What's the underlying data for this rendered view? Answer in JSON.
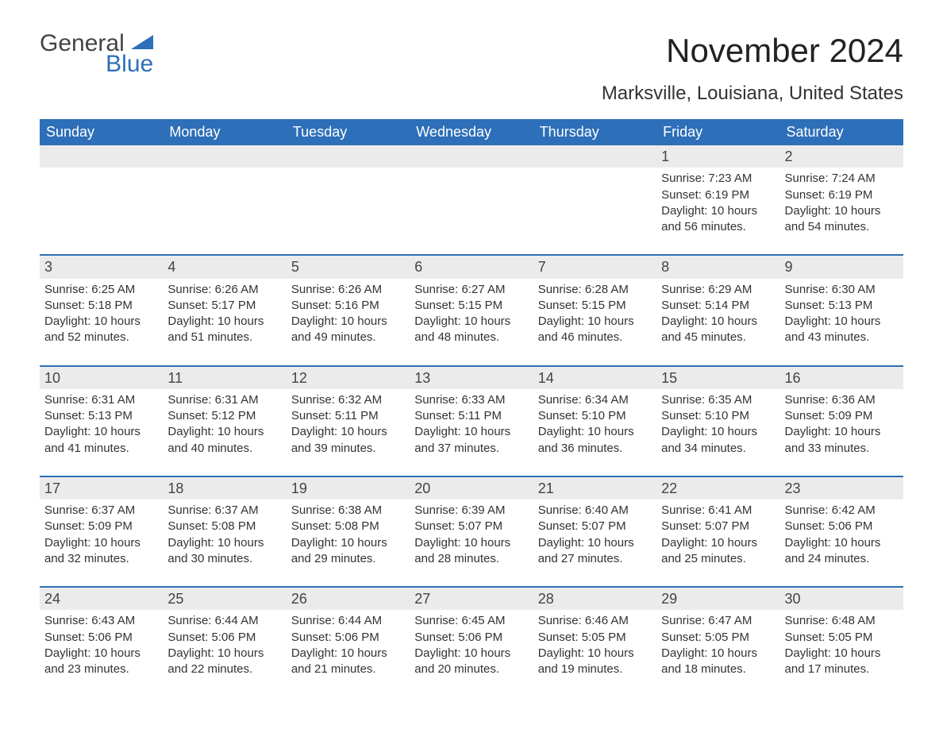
{
  "logo": {
    "part1": "General",
    "part2": "Blue",
    "color_text": "#444444",
    "color_blue": "#2d6fb8"
  },
  "title": "November 2024",
  "location": "Marksville, Louisiana, United States",
  "colors": {
    "header_bg": "#2d6fb8",
    "header_text": "#ffffff",
    "daynum_bg": "#ebebeb",
    "border": "#2d6fb8",
    "body_text": "#333333",
    "background": "#ffffff"
  },
  "typography": {
    "title_fontsize": 42,
    "location_fontsize": 24,
    "header_fontsize": 18,
    "daynum_fontsize": 18,
    "cell_fontsize": 15,
    "logo_fontsize": 30
  },
  "day_headers": [
    "Sunday",
    "Monday",
    "Tuesday",
    "Wednesday",
    "Thursday",
    "Friday",
    "Saturday"
  ],
  "weeks": [
    [
      {
        "empty": true
      },
      {
        "empty": true
      },
      {
        "empty": true
      },
      {
        "empty": true
      },
      {
        "empty": true
      },
      {
        "day": "1",
        "sunrise": "Sunrise: 7:23 AM",
        "sunset": "Sunset: 6:19 PM",
        "daylight": "Daylight: 10 hours and 56 minutes."
      },
      {
        "day": "2",
        "sunrise": "Sunrise: 7:24 AM",
        "sunset": "Sunset: 6:19 PM",
        "daylight": "Daylight: 10 hours and 54 minutes."
      }
    ],
    [
      {
        "day": "3",
        "sunrise": "Sunrise: 6:25 AM",
        "sunset": "Sunset: 5:18 PM",
        "daylight": "Daylight: 10 hours and 52 minutes."
      },
      {
        "day": "4",
        "sunrise": "Sunrise: 6:26 AM",
        "sunset": "Sunset: 5:17 PM",
        "daylight": "Daylight: 10 hours and 51 minutes."
      },
      {
        "day": "5",
        "sunrise": "Sunrise: 6:26 AM",
        "sunset": "Sunset: 5:16 PM",
        "daylight": "Daylight: 10 hours and 49 minutes."
      },
      {
        "day": "6",
        "sunrise": "Sunrise: 6:27 AM",
        "sunset": "Sunset: 5:15 PM",
        "daylight": "Daylight: 10 hours and 48 minutes."
      },
      {
        "day": "7",
        "sunrise": "Sunrise: 6:28 AM",
        "sunset": "Sunset: 5:15 PM",
        "daylight": "Daylight: 10 hours and 46 minutes."
      },
      {
        "day": "8",
        "sunrise": "Sunrise: 6:29 AM",
        "sunset": "Sunset: 5:14 PM",
        "daylight": "Daylight: 10 hours and 45 minutes."
      },
      {
        "day": "9",
        "sunrise": "Sunrise: 6:30 AM",
        "sunset": "Sunset: 5:13 PM",
        "daylight": "Daylight: 10 hours and 43 minutes."
      }
    ],
    [
      {
        "day": "10",
        "sunrise": "Sunrise: 6:31 AM",
        "sunset": "Sunset: 5:13 PM",
        "daylight": "Daylight: 10 hours and 41 minutes."
      },
      {
        "day": "11",
        "sunrise": "Sunrise: 6:31 AM",
        "sunset": "Sunset: 5:12 PM",
        "daylight": "Daylight: 10 hours and 40 minutes."
      },
      {
        "day": "12",
        "sunrise": "Sunrise: 6:32 AM",
        "sunset": "Sunset: 5:11 PM",
        "daylight": "Daylight: 10 hours and 39 minutes."
      },
      {
        "day": "13",
        "sunrise": "Sunrise: 6:33 AM",
        "sunset": "Sunset: 5:11 PM",
        "daylight": "Daylight: 10 hours and 37 minutes."
      },
      {
        "day": "14",
        "sunrise": "Sunrise: 6:34 AM",
        "sunset": "Sunset: 5:10 PM",
        "daylight": "Daylight: 10 hours and 36 minutes."
      },
      {
        "day": "15",
        "sunrise": "Sunrise: 6:35 AM",
        "sunset": "Sunset: 5:10 PM",
        "daylight": "Daylight: 10 hours and 34 minutes."
      },
      {
        "day": "16",
        "sunrise": "Sunrise: 6:36 AM",
        "sunset": "Sunset: 5:09 PM",
        "daylight": "Daylight: 10 hours and 33 minutes."
      }
    ],
    [
      {
        "day": "17",
        "sunrise": "Sunrise: 6:37 AM",
        "sunset": "Sunset: 5:09 PM",
        "daylight": "Daylight: 10 hours and 32 minutes."
      },
      {
        "day": "18",
        "sunrise": "Sunrise: 6:37 AM",
        "sunset": "Sunset: 5:08 PM",
        "daylight": "Daylight: 10 hours and 30 minutes."
      },
      {
        "day": "19",
        "sunrise": "Sunrise: 6:38 AM",
        "sunset": "Sunset: 5:08 PM",
        "daylight": "Daylight: 10 hours and 29 minutes."
      },
      {
        "day": "20",
        "sunrise": "Sunrise: 6:39 AM",
        "sunset": "Sunset: 5:07 PM",
        "daylight": "Daylight: 10 hours and 28 minutes."
      },
      {
        "day": "21",
        "sunrise": "Sunrise: 6:40 AM",
        "sunset": "Sunset: 5:07 PM",
        "daylight": "Daylight: 10 hours and 27 minutes."
      },
      {
        "day": "22",
        "sunrise": "Sunrise: 6:41 AM",
        "sunset": "Sunset: 5:07 PM",
        "daylight": "Daylight: 10 hours and 25 minutes."
      },
      {
        "day": "23",
        "sunrise": "Sunrise: 6:42 AM",
        "sunset": "Sunset: 5:06 PM",
        "daylight": "Daylight: 10 hours and 24 minutes."
      }
    ],
    [
      {
        "day": "24",
        "sunrise": "Sunrise: 6:43 AM",
        "sunset": "Sunset: 5:06 PM",
        "daylight": "Daylight: 10 hours and 23 minutes."
      },
      {
        "day": "25",
        "sunrise": "Sunrise: 6:44 AM",
        "sunset": "Sunset: 5:06 PM",
        "daylight": "Daylight: 10 hours and 22 minutes."
      },
      {
        "day": "26",
        "sunrise": "Sunrise: 6:44 AM",
        "sunset": "Sunset: 5:06 PM",
        "daylight": "Daylight: 10 hours and 21 minutes."
      },
      {
        "day": "27",
        "sunrise": "Sunrise: 6:45 AM",
        "sunset": "Sunset: 5:06 PM",
        "daylight": "Daylight: 10 hours and 20 minutes."
      },
      {
        "day": "28",
        "sunrise": "Sunrise: 6:46 AM",
        "sunset": "Sunset: 5:05 PM",
        "daylight": "Daylight: 10 hours and 19 minutes."
      },
      {
        "day": "29",
        "sunrise": "Sunrise: 6:47 AM",
        "sunset": "Sunset: 5:05 PM",
        "daylight": "Daylight: 10 hours and 18 minutes."
      },
      {
        "day": "30",
        "sunrise": "Sunrise: 6:48 AM",
        "sunset": "Sunset: 5:05 PM",
        "daylight": "Daylight: 10 hours and 17 minutes."
      }
    ]
  ]
}
